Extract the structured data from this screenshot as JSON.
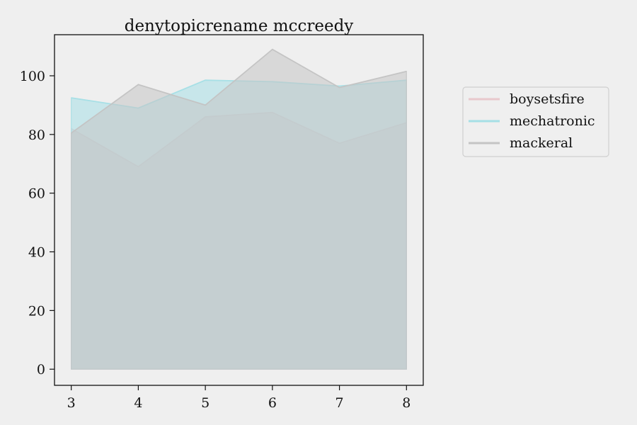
{
  "chart_data": {
    "type": "area",
    "title": "denytopicrename mccreedy",
    "xlabel": "",
    "ylabel": "",
    "x": [
      3,
      4,
      5,
      6,
      7,
      8
    ],
    "xlim": [
      2.75,
      8.25
    ],
    "ylim": [
      -5.5,
      114
    ],
    "xticks": [
      3,
      4,
      5,
      6,
      7,
      8
    ],
    "yticks": [
      0,
      20,
      40,
      60,
      80,
      100
    ],
    "grid": false,
    "legend_position": "right",
    "series": [
      {
        "name": "boysetsfire",
        "color": "#e8c8cc",
        "values": [
          82,
          69,
          86,
          87.5,
          77,
          84
        ]
      },
      {
        "name": "mechatronic",
        "color": "#a6dfe6",
        "values": [
          92.5,
          89,
          98.5,
          98,
          96.5,
          98.5
        ]
      },
      {
        "name": "mackeral",
        "color": "#c4c4c4",
        "values": [
          80.5,
          97,
          90,
          109,
          96,
          101.5
        ]
      }
    ]
  }
}
